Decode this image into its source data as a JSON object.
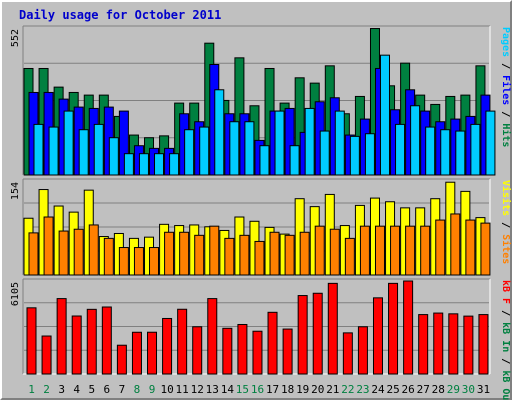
{
  "chart_data": {
    "type": "bar",
    "title": "Daily usage for October 2011",
    "categories": [
      "1",
      "2",
      "3",
      "4",
      "5",
      "6",
      "7",
      "8",
      "9",
      "10",
      "11",
      "12",
      "13",
      "14",
      "15",
      "16",
      "17",
      "18",
      "19",
      "20",
      "21",
      "22",
      "23",
      "24",
      "25",
      "26",
      "27",
      "28",
      "29",
      "30",
      "31"
    ],
    "weekend_days": [
      "1",
      "2",
      "8",
      "9",
      "15",
      "16",
      "22",
      "23",
      "29",
      "30"
    ],
    "panels": [
      {
        "id": "hits",
        "ymax_label": "552",
        "ymax": 552,
        "legend": [
          {
            "text": "Pages",
            "color": "#00ccff"
          },
          {
            "text": "Files",
            "color": "#0000ff"
          },
          {
            "text": "Hits",
            "color": "#008040"
          }
        ],
        "separator": " / ",
        "series": [
          {
            "name": "Hits",
            "color": "#008040",
            "values": [
              400,
              400,
              330,
              310,
              300,
              300,
              220,
              150,
              140,
              147,
              270,
              270,
              495,
              280,
              440,
              260,
              400,
              270,
              365,
              345,
              410,
              230,
              295,
              550,
              335,
              420,
              300,
              265,
              295,
              300,
              410
            ]
          },
          {
            "name": "Files",
            "color": "#0000ff",
            "values": [
              310,
              310,
              285,
              255,
              250,
              255,
              240,
              110,
              100,
              100,
              230,
              200,
              415,
              230,
              230,
              130,
              240,
              250,
              160,
              275,
              290,
              150,
              210,
              400,
              245,
              320,
              240,
              200,
              210,
              220,
              300
            ]
          },
          {
            "name": "Pages",
            "color": "#00ccff",
            "values": [
              190,
              180,
              240,
              170,
              190,
              140,
              80,
              80,
              80,
              80,
              170,
              180,
              320,
              200,
              200,
              110,
              240,
              110,
              250,
              165,
              240,
              145,
              155,
              450,
              190,
              260,
              180,
              170,
              165,
              190,
              240
            ]
          }
        ]
      },
      {
        "id": "visits",
        "ymax_label": "154",
        "ymax": 154,
        "legend": [
          {
            "text": "Visits",
            "color": "#ffff00"
          },
          {
            "text": "Sites",
            "color": "#ff8000"
          }
        ],
        "separator": " / ",
        "series": [
          {
            "name": "Visits",
            "color": "#ffff00",
            "values": [
              93,
              140,
              113,
              103,
              139,
              63,
              68,
              60,
              62,
              83,
              81,
              82,
              79,
              73,
              95,
              88,
              78,
              67,
              125,
              112,
              132,
              81,
              114,
              126,
              120,
              110,
              110,
              125,
              152,
              137,
              94
            ]
          },
          {
            "name": "Sites",
            "color": "#ff8000",
            "values": [
              69,
              95,
              72,
              75,
              82,
              60,
              45,
              45,
              45,
              70,
              70,
              65,
              80,
              60,
              65,
              55,
              70,
              65,
              70,
              80,
              75,
              60,
              80,
              80,
              80,
              80,
              80,
              90,
              100,
              90,
              85
            ]
          }
        ]
      },
      {
        "id": "kbytes",
        "ymax_label": "6105",
        "ymax": 6105,
        "legend": [
          {
            "text": "kB F",
            "color": "#ff0000"
          },
          {
            "text": "kB In",
            "color": "#008040"
          },
          {
            "text": "kB Out",
            "color": "#008040"
          }
        ],
        "separator": " / ",
        "series": [
          {
            "name": "kB F",
            "color": "#ff0000",
            "values": [
              4345,
              2493,
              4950,
              3807,
              4245,
              4398,
              1889,
              2740,
              2742,
              3645,
              4250,
              3100,
              4950,
              3000,
              3250,
              2808,
              4050,
              2950,
              5150,
              5300,
              5950,
              2700,
              3100,
              5000,
              5950,
              6105,
              3900,
              4000,
              3950,
              3800,
              3900
            ]
          }
        ]
      }
    ]
  }
}
